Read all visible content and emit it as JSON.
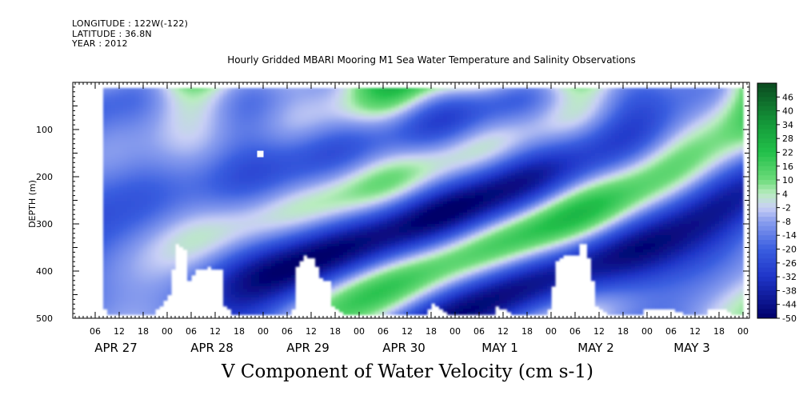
{
  "header": {
    "longitude": "LONGITUDE : 122W(-122)",
    "latitude": "LATITUDE : 36.8N",
    "year": "YEAR : 2012"
  },
  "title": "Hourly Gridded MBARI Mooring M1 Sea Water Temperature and Salinity Observations",
  "bottom_title": "V Component of Water Velocity (cm s-1)",
  "chart_data": {
    "type": "heatmap",
    "title": "Hourly Gridded MBARI Mooring M1 Sea Water Temperature and Salinity Observations",
    "xlabel": "",
    "ylabel": "DEPTH (m)",
    "variable": "V Component of Water Velocity (cm s-1)",
    "ylim": [
      500,
      0
    ],
    "y_axis_inverted": true,
    "y_ticks": [
      100,
      200,
      300,
      400,
      500
    ],
    "x_range_hours": [
      0,
      168
    ],
    "x_hour_ticks": [
      "06",
      "12",
      "18",
      "00",
      "06",
      "12",
      "18",
      "00",
      "06",
      "12",
      "18",
      "00",
      "06",
      "12",
      "18",
      "00",
      "06",
      "12",
      "18",
      "00",
      "06",
      "12",
      "18",
      "00",
      "06",
      "12",
      "18",
      "00"
    ],
    "day_labels": [
      "APR 27",
      "APR 28",
      "APR 29",
      "APR 30",
      "MAY  1",
      "MAY  2",
      "MAY  3"
    ],
    "colorbar_levels": [
      "46",
      "40",
      "34",
      "28",
      "22",
      "16",
      "10",
      "4",
      "-2",
      "-8",
      "-14",
      "-20",
      "-26",
      "-32",
      "-38",
      "-44",
      "-50"
    ],
    "colorbar_range": [
      -50,
      52
    ],
    "colors": {
      "positive_max": "#0a4a1f",
      "positive_mid": "#22c04a",
      "neutral": "#c8cff5",
      "negative_mid": "#3a5ee0",
      "negative_max": "#00006a"
    }
  }
}
